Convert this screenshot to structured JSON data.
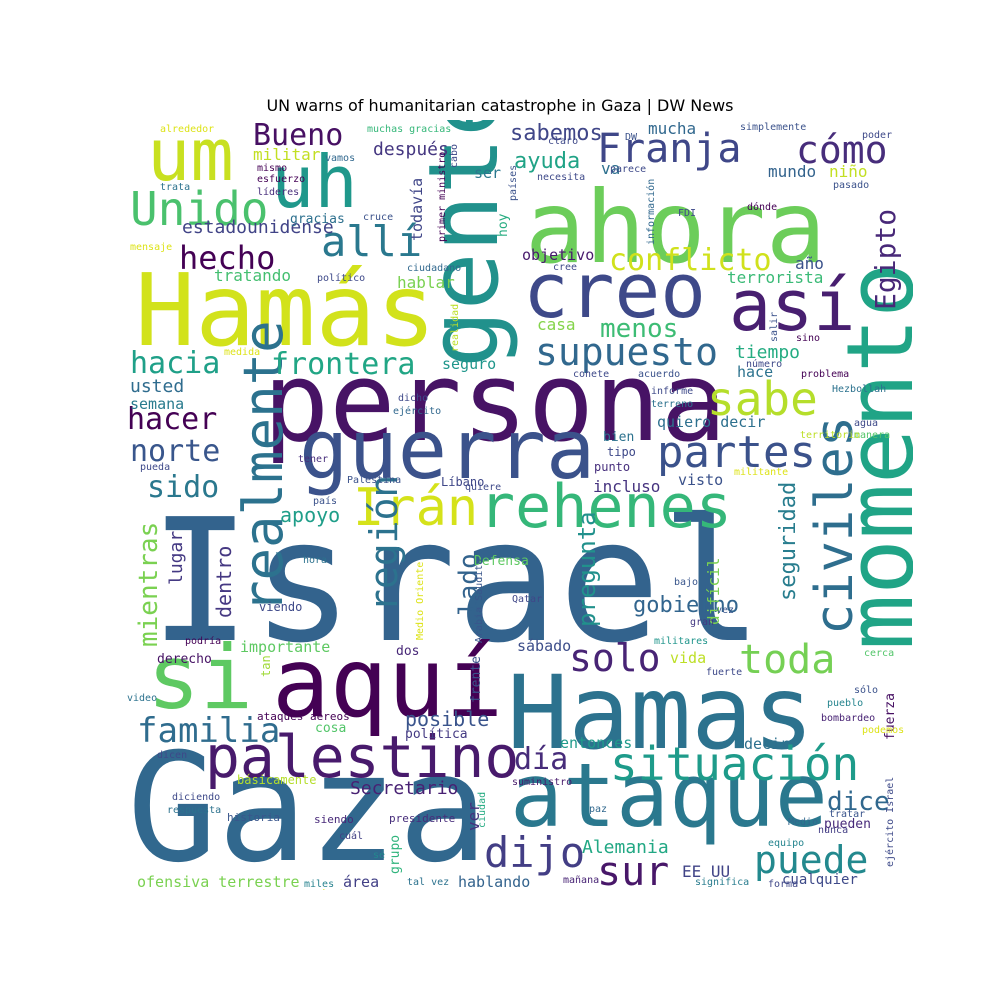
{
  "title": "UN warns of humanitarian catastrophe in Gaza | DW News",
  "words": [
    {
      "t": "Israel",
      "f": 170,
      "c": "#33638d"
    },
    {
      "t": "Gaza",
      "f": 150,
      "c": "#31688e"
    },
    {
      "t": "persona",
      "f": 110,
      "c": "#471365"
    },
    {
      "t": "Hamas",
      "f": 102,
      "c": "#2c728e"
    },
    {
      "t": "Hamás",
      "f": 100,
      "c": "#d2e21b"
    },
    {
      "t": "ahora",
      "f": 100,
      "c": "#6ccd5a"
    },
    {
      "t": "aquí",
      "f": 96,
      "c": "#440154"
    },
    {
      "t": "gente",
      "f": 96,
      "c": "#21918c"
    },
    {
      "t": "momento",
      "f": 92,
      "c": "#20a486"
    },
    {
      "t": "ataque",
      "f": 88,
      "c": "#2a788e"
    },
    {
      "t": "si",
      "f": 88,
      "c": "#5ec962"
    },
    {
      "t": "guerra",
      "f": 82,
      "c": "#3b528b"
    },
    {
      "t": "creo",
      "f": 76,
      "c": "#3e4989"
    },
    {
      "t": "uh",
      "f": 72,
      "c": "#1f988b"
    },
    {
      "t": "um",
      "f": 72,
      "c": "#c8e020"
    },
    {
      "t": "así",
      "f": 70,
      "c": "#481f70"
    },
    {
      "t": "rehenes",
      "f": 60,
      "c": "#35b779"
    },
    {
      "t": "palestino",
      "f": 58,
      "c": "#481a6c"
    },
    {
      "t": "realmente",
      "f": 54,
      "c": "#2c728e"
    },
    {
      "t": "civiles",
      "f": 52,
      "c": "#2e6e8e"
    },
    {
      "t": "Irán",
      "f": 52,
      "c": "#d5e21a"
    },
    {
      "t": "situación",
      "f": 46,
      "c": "#1e9b8a"
    },
    {
      "t": "sabe",
      "f": 46,
      "c": "#b5de2b"
    },
    {
      "t": "Unido",
      "f": 46,
      "c": "#4ac16d"
    },
    {
      "t": "partes",
      "f": 44,
      "c": "#3b528b"
    },
    {
      "t": "allí",
      "f": 42,
      "c": "#2a788e"
    },
    {
      "t": "dijo",
      "f": 42,
      "c": "#433e85"
    },
    {
      "t": "Franja",
      "f": 40,
      "c": "#3f4788"
    },
    {
      "t": "sur",
      "f": 40,
      "c": "#481769"
    },
    {
      "t": "toda",
      "f": 40,
      "c": "#75d054"
    },
    {
      "t": "puede",
      "f": 38,
      "c": "#23898e"
    },
    {
      "t": "supuesto",
      "f": 38,
      "c": "#31688e"
    },
    {
      "t": "cómo",
      "f": 38,
      "c": "#472d7b"
    },
    {
      "t": "solo",
      "f": 38,
      "c": "#482475"
    },
    {
      "t": "región",
      "f": 38,
      "c": "#2c728e"
    },
    {
      "t": "conflicto",
      "f": 30,
      "c": "#d0e11c"
    },
    {
      "t": "familia",
      "f": 34,
      "c": "#2f6c8e"
    },
    {
      "t": "hecho",
      "f": 32,
      "c": "#440154"
    },
    {
      "t": "día",
      "f": 30,
      "c": "#472c7a"
    },
    {
      "t": "Bueno",
      "f": 30,
      "c": "#471063"
    },
    {
      "t": "frontera",
      "f": 30,
      "c": "#21a685"
    },
    {
      "t": "hacer",
      "f": 30,
      "c": "#440154"
    },
    {
      "t": "hacia",
      "f": 30,
      "c": "#1fa088"
    },
    {
      "t": "norte",
      "f": 30,
      "c": "#39568c"
    },
    {
      "t": "sido",
      "f": 30,
      "c": "#2a788e"
    },
    {
      "t": "Egipto",
      "f": 28,
      "c": "#482878"
    },
    {
      "t": "dice",
      "f": 26,
      "c": "#31688e"
    },
    {
      "t": "menos",
      "f": 26,
      "c": "#3dbc74"
    },
    {
      "t": "mientras",
      "f": 26,
      "c": "#7ad151"
    },
    {
      "t": "lado",
      "f": 26,
      "c": "#33638d"
    },
    {
      "t": "pregunta",
      "f": 24,
      "c": "#21918c"
    },
    {
      "t": "seguridad",
      "f": 22,
      "c": "#287d8e"
    },
    {
      "t": "gobierno",
      "f": 22,
      "c": "#32658e"
    },
    {
      "t": "sabemos",
      "f": 22,
      "c": "#404688"
    },
    {
      "t": "ayuda",
      "f": 22,
      "c": "#20a386"
    },
    {
      "t": "apoyo",
      "f": 20,
      "c": "#1f9e89"
    },
    {
      "t": "posible",
      "f": 20,
      "c": "#3a548c"
    },
    {
      "t": "dentro",
      "f": 20,
      "c": "#453882"
    },
    {
      "t": "tiempo",
      "f": 18,
      "c": "#25ac82"
    },
    {
      "t": "Secretario",
      "f": 18,
      "c": "#482173"
    },
    {
      "t": "Alemania",
      "f": 18,
      "c": "#22a884"
    },
    {
      "t": "estadounidense",
      "f": 18,
      "c": "#414487"
    },
    {
      "t": "después",
      "f": 18,
      "c": "#453781"
    },
    {
      "t": "lugar",
      "f": 18,
      "c": "#443983"
    },
    {
      "t": "incluso",
      "f": 16,
      "c": "#46337f"
    },
    {
      "t": "ver",
      "f": 16,
      "c": "#46327e"
    },
    {
      "t": "va",
      "f": 16,
      "c": "#2d708e"
    },
    {
      "t": "mucha",
      "f": 16,
      "c": "#31688e"
    },
    {
      "t": "militar",
      "f": 16,
      "c": "#c2df23"
    },
    {
      "t": "mundo",
      "f": 16,
      "c": "#33638d"
    },
    {
      "t": "niño",
      "f": 16,
      "c": "#c2df23"
    },
    {
      "t": "año",
      "f": 16,
      "c": "#3b528b"
    },
    {
      "t": "terrorista",
      "f": 16,
      "c": "#3aba76"
    },
    {
      "t": "difícil",
      "f": 16,
      "c": "#7ad151"
    },
    {
      "t": "todavía",
      "f": 15,
      "c": "#404688"
    },
    {
      "t": "EE UU",
      "f": 16,
      "c": "#414487"
    },
    {
      "t": "casa",
      "f": 16,
      "c": "#84d44b"
    },
    {
      "t": "seguro",
      "f": 15,
      "c": "#1f968b"
    },
    {
      "t": "usted",
      "f": 18,
      "c": "#2f6c8e"
    },
    {
      "t": "semana",
      "f": 15,
      "c": "#297b8e"
    },
    {
      "t": "visto",
      "f": 15,
      "c": "#3b528b"
    },
    {
      "t": "tratando",
      "f": 16,
      "c": "#44bf70"
    },
    {
      "t": "hablar",
      "f": 16,
      "c": "#7ad151"
    },
    {
      "t": "objetivo",
      "f": 15,
      "c": "#481b6d"
    },
    {
      "t": "ofensiva terrestre",
      "f": 15,
      "c": "#7ad151"
    },
    {
      "t": "hablando",
      "f": 15,
      "c": "#33638d"
    },
    {
      "t": "quiero decir",
      "f": 15,
      "c": "#2d708e"
    },
    {
      "t": "sábado",
      "f": 15,
      "c": "#3d4e8a"
    },
    {
      "t": "importante",
      "f": 15,
      "c": "#5ec962"
    },
    {
      "t": "Defensa",
      "f": 13,
      "c": "#5ec962"
    },
    {
      "t": "área",
      "f": 15,
      "c": "#424086"
    },
    {
      "t": "cualquier",
      "f": 14,
      "c": "#3e4a89"
    },
    {
      "t": "entonces",
      "f": 15,
      "c": "#1f9a8a"
    },
    {
      "t": "decir",
      "f": 15,
      "c": "#2d708e"
    },
    {
      "t": "vida",
      "f": 15,
      "c": "#bddf26"
    },
    {
      "t": "bien",
      "f": 13,
      "c": "#2c728e"
    },
    {
      "t": "gracias",
      "f": 13,
      "c": "#2d708e"
    },
    {
      "t": "hoy",
      "f": 13,
      "c": "#27ad81"
    },
    {
      "t": "ser",
      "f": 15,
      "c": "#2a788e"
    },
    {
      "t": "hace",
      "f": 15,
      "c": "#2c728e"
    },
    {
      "t": "derecho",
      "f": 13,
      "c": "#471365"
    },
    {
      "t": "política",
      "f": 13,
      "c": "#443a83"
    },
    {
      "t": "cosa",
      "f": 13,
      "c": "#52c569"
    },
    {
      "t": "dos",
      "f": 13,
      "c": "#482878"
    },
    {
      "t": "grupo",
      "f": 13,
      "c": "#2fb47c"
    },
    {
      "t": "fuerza",
      "f": 13,
      "c": "#471063"
    },
    {
      "t": "pueden",
      "f": 13,
      "c": "#472a7a"
    },
    {
      "t": "frente",
      "f": 13,
      "c": "#3b528b"
    },
    {
      "t": "tan",
      "f": 12,
      "c": "#a0da39"
    },
    {
      "t": "tipo",
      "f": 12,
      "c": "#3e4989"
    },
    {
      "t": "punto",
      "f": 12,
      "c": "#472f7d"
    },
    {
      "t": "viendo",
      "f": 12,
      "c": "#3e4989"
    },
    {
      "t": "Líbano",
      "f": 12,
      "c": "#3f4788"
    },
    {
      "t": "ataques aéreos",
      "f": 11,
      "c": "#440154"
    },
    {
      "t": "suministro",
      "f": 10,
      "c": "#481a6c"
    },
    {
      "t": "presidente",
      "f": 11,
      "c": "#472d7b"
    },
    {
      "t": "historia",
      "f": 11,
      "c": "#39568c"
    },
    {
      "t": "respuesta",
      "f": 10,
      "c": "#2c728e"
    },
    {
      "t": "diciendo",
      "f": 10,
      "c": "#3e4989"
    },
    {
      "t": "básicamente",
      "f": 12,
      "c": "#b5de2b"
    },
    {
      "t": "siendo",
      "f": 11,
      "c": "#482979"
    },
    {
      "t": "cuál",
      "f": 10,
      "c": "#424186"
    },
    {
      "t": "sé",
      "f": 10,
      "c": "#23898e"
    },
    {
      "t": "miles",
      "f": 10,
      "c": "#26828e"
    },
    {
      "t": "tal vez",
      "f": 10,
      "c": "#2c728e"
    },
    {
      "t": "ciudad",
      "f": 10,
      "c": "#25ab82"
    },
    {
      "t": "paz",
      "f": 10,
      "c": "#31688e"
    },
    {
      "t": "mañana",
      "f": 10,
      "c": "#482475"
    },
    {
      "t": "significa",
      "f": 10,
      "c": "#287c8e"
    },
    {
      "t": "forma",
      "f": 10,
      "c": "#3f4788"
    },
    {
      "t": "tratar",
      "f": 10,
      "c": "#3a548c"
    },
    {
      "t": "nunca",
      "f": 10,
      "c": "#433e85"
    },
    {
      "t": "Medio",
      "f": 10,
      "c": "#31688e"
    },
    {
      "t": "equipo",
      "f": 10,
      "c": "#25848e"
    },
    {
      "t": "ejército Israel",
      "f": 10,
      "c": "#3e4a89"
    },
    {
      "t": "bombardeo",
      "f": 10,
      "c": "#482374"
    },
    {
      "t": "podemos",
      "f": 10,
      "c": "#dde318"
    },
    {
      "t": "pueblo",
      "f": 10,
      "c": "#25848e"
    },
    {
      "t": "sólo",
      "f": 10,
      "c": "#3b528b"
    },
    {
      "t": "cerca",
      "f": 10,
      "c": "#52c569"
    },
    {
      "t": "fuerte",
      "f": 10,
      "c": "#3e4989"
    },
    {
      "t": "militares",
      "f": 10,
      "c": "#1f958b"
    },
    {
      "t": "gran",
      "f": 10,
      "c": "#443983"
    },
    {
      "t": "vez",
      "f": 10,
      "c": "#39568c"
    },
    {
      "t": "bajo",
      "f": 10,
      "c": "#39568c"
    },
    {
      "t": "Qatar",
      "f": 10,
      "c": "#3f4788"
    },
    {
      "t": "Arabia Saudita",
      "f": 10,
      "c": "#39568c"
    },
    {
      "t": "Medio Oriente",
      "f": 10,
      "c": "#dde318"
    },
    {
      "t": "hora",
      "f": 10,
      "c": "#2c728e"
    },
    {
      "t": "país",
      "f": 10,
      "c": "#3b528b"
    },
    {
      "t": "Palestina",
      "f": 10,
      "c": "#3b528b"
    },
    {
      "t": "quiere",
      "f": 10,
      "c": "#3e4989"
    },
    {
      "t": "tener",
      "f": 10,
      "c": "#472d7b"
    },
    {
      "t": "pueda",
      "f": 10,
      "c": "#3e4989"
    },
    {
      "t": "podría",
      "f": 10,
      "c": "#440154"
    },
    {
      "t": "video",
      "f": 10,
      "c": "#2c728e"
    },
    {
      "t": "dicen",
      "f": 10,
      "c": "#3e4989"
    },
    {
      "t": "militante",
      "f": 10,
      "c": "#dde318"
    },
    {
      "t": "manera",
      "f": 10,
      "c": "#52c569"
    },
    {
      "t": "territorio",
      "f": 10,
      "c": "#bddf26"
    },
    {
      "t": "agua",
      "f": 10,
      "c": "#3e4989"
    },
    {
      "t": "Hezbollah",
      "f": 10,
      "c": "#2c728e"
    },
    {
      "t": "problema",
      "f": 10,
      "c": "#440154"
    },
    {
      "t": "número",
      "f": 10,
      "c": "#3e4989"
    },
    {
      "t": "sino",
      "f": 10,
      "c": "#440154"
    },
    {
      "t": "salir",
      "f": 10,
      "c": "#3b528b"
    },
    {
      "t": "informe",
      "f": 10,
      "c": "#3e4989"
    },
    {
      "t": "terreno",
      "f": 10,
      "c": "#2c728e"
    },
    {
      "t": "acuerdo",
      "f": 10,
      "c": "#3b528b"
    },
    {
      "t": "cohete",
      "f": 10,
      "c": "#3e4989"
    },
    {
      "t": "dicho",
      "f": 10,
      "c": "#3e4989"
    },
    {
      "t": "ejército",
      "f": 10,
      "c": "#31688e"
    },
    {
      "t": "realidad",
      "f": 10,
      "c": "#bddf26"
    },
    {
      "t": "medida",
      "f": 10,
      "c": "#dde318"
    },
    {
      "t": "político",
      "f": 10,
      "c": "#3e4989"
    },
    {
      "t": "ciudadano",
      "f": 10,
      "c": "#31688e"
    },
    {
      "t": "cree",
      "f": 10,
      "c": "#3e4989"
    },
    {
      "t": "cruce",
      "f": 10,
      "c": "#3b528b"
    },
    {
      "t": "primer ministro",
      "f": 10,
      "c": "#440154"
    },
    {
      "t": "países",
      "f": 10,
      "c": "#3b528b"
    },
    {
      "t": "información",
      "f": 10,
      "c": "#31688e"
    },
    {
      "t": "FDI",
      "f": 10,
      "c": "#3e4989"
    },
    {
      "t": "dónde",
      "f": 10,
      "c": "#440154"
    },
    {
      "t": "pasado",
      "f": 10,
      "c": "#3b528b"
    },
    {
      "t": "simplemente",
      "f": 10,
      "c": "#3b528b"
    },
    {
      "t": "poder",
      "f": 10,
      "c": "#3e4989"
    },
    {
      "t": "muchas gracias",
      "f": 10,
      "c": "#35b779"
    },
    {
      "t": "alrededor",
      "f": 10,
      "c": "#dde318"
    },
    {
      "t": "vamos",
      "f": 10,
      "c": "#31688e"
    },
    {
      "t": "mismo",
      "f": 10,
      "c": "#440154"
    },
    {
      "t": "esfuerzo",
      "f": 10,
      "c": "#440154"
    },
    {
      "t": "líderes",
      "f": 10,
      "c": "#472d7b"
    },
    {
      "t": "trata",
      "f": 10,
      "c": "#2c728e"
    },
    {
      "t": "mensaje",
      "f": 10,
      "c": "#dde318"
    },
    {
      "t": "cabo",
      "f": 10,
      "c": "#3e4989"
    },
    {
      "t": "necesita",
      "f": 10,
      "c": "#3e4989"
    },
    {
      "t": "claro",
      "f": 10,
      "c": "#3e4989"
    },
    {
      "t": "parece",
      "f": 10,
      "c": "#3e4989"
    },
    {
      "t": "DW",
      "f": 10,
      "c": "#3b528b"
    },
    {
      "t": "término",
      "f": 10,
      "c": "#dde318"
    }
  ]
}
